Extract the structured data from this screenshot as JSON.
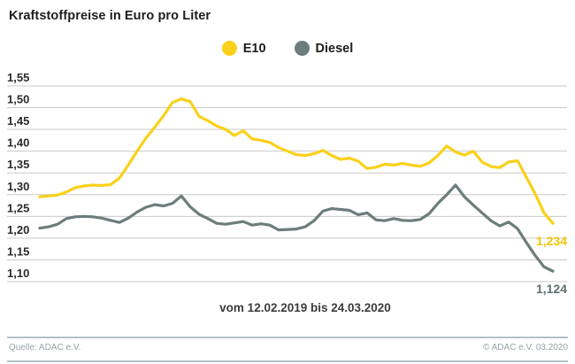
{
  "title": "Kraftstoffpreise in Euro pro Liter",
  "legend": [
    {
      "label": "E10",
      "color": "#FBD01A"
    },
    {
      "label": "Diesel",
      "color": "#6C7D7B"
    }
  ],
  "colors": {
    "e10_line": "#FBD01A",
    "e10_value_label": "#F2C508",
    "diesel_line": "#6C7D7B",
    "diesel_value_label": "#5E6F6F",
    "gridline": "#c9c9c9",
    "axis_text": "#2b2b2b",
    "title_text": "#1d1d1b",
    "footer_text": "#96a2a6",
    "footer_rule": "#b5c2c8"
  },
  "footer": {
    "source_left": "Quelle: ADAC e.V.",
    "source_right": "© ADAC e.V.  03.2020"
  },
  "chart_data": {
    "type": "line",
    "title": "Kraftstoffpreise in Euro pro Liter",
    "x_caption": "vom 12.02.2019 bis 24.03.2020",
    "x_range_dates": [
      "12.02.2019",
      "24.03.2020"
    ],
    "ylabel": "Euro pro Liter",
    "ylim": [
      1.1,
      1.55
    ],
    "ytick_step": 0.05,
    "ytick_labels": [
      "1,55",
      "1,50",
      "1,45",
      "1,40",
      "1,35",
      "1,30",
      "1,25",
      "1,20",
      "1,15",
      "1,10"
    ],
    "grid": true,
    "legend_position": "top-center",
    "series": [
      {
        "name": "E10",
        "end_label": "1,234",
        "end_value": 1.234,
        "values": [
          1.295,
          1.297,
          1.299,
          1.306,
          1.316,
          1.32,
          1.322,
          1.321,
          1.323,
          1.338,
          1.368,
          1.4,
          1.43,
          1.455,
          1.482,
          1.512,
          1.52,
          1.514,
          1.48,
          1.47,
          1.458,
          1.45,
          1.436,
          1.447,
          1.428,
          1.425,
          1.42,
          1.408,
          1.4,
          1.392,
          1.39,
          1.394,
          1.402,
          1.39,
          1.381,
          1.384,
          1.377,
          1.36,
          1.363,
          1.37,
          1.368,
          1.372,
          1.368,
          1.365,
          1.373,
          1.39,
          1.412,
          1.398,
          1.391,
          1.4,
          1.375,
          1.365,
          1.362,
          1.375,
          1.378,
          1.34,
          1.302,
          1.258,
          1.234
        ]
      },
      {
        "name": "Diesel",
        "end_label": "1,124",
        "end_value": 1.124,
        "values": [
          1.223,
          1.226,
          1.232,
          1.245,
          1.249,
          1.25,
          1.249,
          1.246,
          1.241,
          1.236,
          1.246,
          1.26,
          1.271,
          1.277,
          1.274,
          1.28,
          1.297,
          1.272,
          1.255,
          1.245,
          1.234,
          1.232,
          1.235,
          1.238,
          1.23,
          1.233,
          1.23,
          1.219,
          1.22,
          1.221,
          1.226,
          1.24,
          1.262,
          1.268,
          1.266,
          1.264,
          1.254,
          1.258,
          1.242,
          1.24,
          1.245,
          1.241,
          1.24,
          1.243,
          1.256,
          1.28,
          1.3,
          1.322,
          1.295,
          1.276,
          1.258,
          1.24,
          1.228,
          1.237,
          1.222,
          1.19,
          1.16,
          1.134,
          1.124
        ]
      }
    ]
  }
}
